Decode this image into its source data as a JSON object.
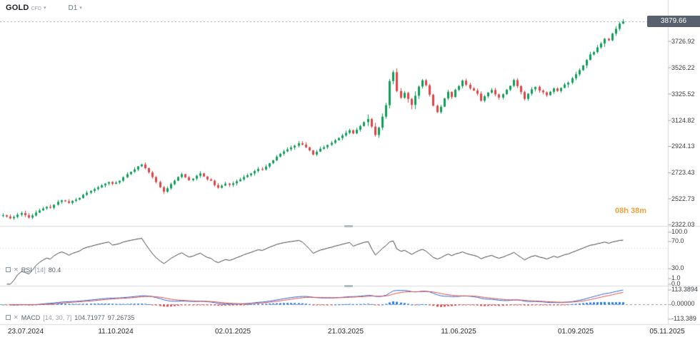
{
  "header": {
    "symbol": "GOLD",
    "market_type": "CFD",
    "timeframe": "D1",
    "symbol_caret": "▾",
    "timeframe_caret": "▾"
  },
  "price_axis": {
    "current_price": "3879.66",
    "ticks": [
      "3726.92",
      "3526.22",
      "3325.52",
      "3124.82",
      "2924.13",
      "2723.43",
      "2522.73",
      "2322.03"
    ]
  },
  "countdown": "08h 38m",
  "rsi_panel": {
    "name": "RSI",
    "period": "[14]",
    "value": "80.4",
    "close_icon": "✕",
    "ticks": [
      "100.0",
      "70.0",
      "30.0",
      "1.0",
      "0.0"
    ]
  },
  "macd_panel": {
    "name": "MACD",
    "params": "[14, 30, 7]",
    "value_macd": "104.71977",
    "value_signal": "97.26735",
    "close_icon": "✕",
    "ticks": [
      "113.3894",
      "0.00000",
      "-113.389"
    ]
  },
  "time_axis": [
    "23.07.2024",
    "11.10.2024",
    "02.01.2025",
    "21.03.2025",
    "11.06.2025",
    "01.09.2025",
    "05.11.2025"
  ],
  "chart_data": {
    "type": "candlestick",
    "title": "GOLD CFD D1",
    "x_range": [
      "23.07.2024",
      "05.11.2025"
    ],
    "ylim": [
      2322.03,
      3990
    ],
    "current_price": 3879.66,
    "closes": [
      2398,
      2388,
      2374,
      2385,
      2402,
      2415,
      2398,
      2380,
      2396,
      2418,
      2435,
      2450,
      2462,
      2455,
      2478,
      2500,
      2512,
      2504,
      2492,
      2508,
      2518,
      2530,
      2554,
      2570,
      2584,
      2598,
      2612,
      2626,
      2640,
      2652,
      2638,
      2648,
      2662,
      2688,
      2712,
      2730,
      2748,
      2772,
      2786,
      2758,
      2726,
      2690,
      2652,
      2612,
      2578,
      2604,
      2636,
      2662,
      2690,
      2712,
      2688,
      2666,
      2678,
      2700,
      2718,
      2694,
      2672,
      2662,
      2628,
      2608,
      2624,
      2640,
      2630,
      2642,
      2658,
      2672,
      2690,
      2704,
      2718,
      2736,
      2752,
      2748,
      2770,
      2796,
      2818,
      2846,
      2868,
      2886,
      2902,
      2916,
      2930,
      2948,
      2938,
      2918,
      2894,
      2862,
      2884,
      2906,
      2918,
      2936,
      2952,
      2972,
      2988,
      3008,
      3028,
      3048,
      3024,
      3052,
      3080,
      3110,
      3134,
      3076,
      3012,
      3068,
      3152,
      3240,
      3424,
      3492,
      3348,
      3296,
      3334,
      3288,
      3242,
      3312,
      3382,
      3430,
      3392,
      3320,
      3236,
      3186,
      3228,
      3292,
      3342,
      3302,
      3358,
      3386,
      3428,
      3396,
      3368,
      3352,
      3328,
      3274,
      3308,
      3336,
      3356,
      3322,
      3298,
      3324,
      3358,
      3388,
      3432,
      3386,
      3340,
      3288,
      3328,
      3362,
      3380,
      3352,
      3338,
      3316,
      3342,
      3368,
      3348,
      3372,
      3398,
      3412,
      3446,
      3476,
      3508,
      3544,
      3586,
      3628,
      3646,
      3682,
      3712,
      3748,
      3736,
      3788,
      3824,
      3864,
      3879.66
    ],
    "indicators": [
      {
        "type": "RSI",
        "period": 14,
        "value": 80.4,
        "range": [
          0,
          100
        ],
        "levels": [
          70,
          30
        ]
      },
      {
        "type": "MACD",
        "fast": 14,
        "slow": 30,
        "signal": 7,
        "macd_value": 104.71977,
        "signal_value": 97.26735,
        "scale_max": 113.3894
      }
    ],
    "colors": {
      "up": "#0f9d58",
      "down": "#e04444",
      "rsi_line": "#3c4043",
      "macd_line": "#2a62d9",
      "signal_line": "#d94f44",
      "hist_pos": "#2a7de1",
      "hist_neg": "#e04444",
      "badge_bg": "#59616e",
      "countdown": "#f2a33c",
      "separator": "#d8dbde"
    }
  }
}
